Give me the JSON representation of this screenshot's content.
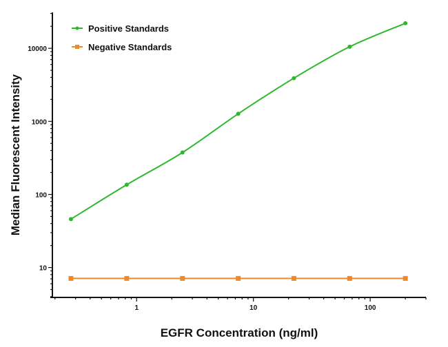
{
  "chart_data": {
    "type": "line",
    "title": "",
    "xlabel": "EGFR Concentration (ng/ml)",
    "ylabel": "Median Fluorescent Intensity",
    "xscale": "log",
    "yscale": "log",
    "xlim": [
      0.19,
      300
    ],
    "ylim": [
      3.9,
      31000
    ],
    "xticks": [
      {
        "value": 1,
        "label": "1"
      },
      {
        "value": 10,
        "label": "10"
      },
      {
        "value": 100,
        "label": "100"
      }
    ],
    "yticks": [
      {
        "value": 10,
        "label": "10"
      },
      {
        "value": 100,
        "label": "100"
      },
      {
        "value": 1000,
        "label": "1000"
      },
      {
        "value": 10000,
        "label": "10000"
      }
    ],
    "grid": false,
    "legend_position": "top-left",
    "x": [
      0.274,
      0.823,
      2.47,
      7.41,
      22.2,
      66.7,
      200
    ],
    "series": [
      {
        "name": "Positive Standards",
        "color": "#2eb82e",
        "marker": "circle",
        "values": [
          46,
          136,
          375,
          1270,
          3900,
          10500,
          22000
        ]
      },
      {
        "name": "Negative Standards",
        "color": "#f0892a",
        "marker": "square",
        "values": [
          7.1,
          7.1,
          7.1,
          7.1,
          7.1,
          7.1,
          7.1
        ]
      }
    ]
  }
}
